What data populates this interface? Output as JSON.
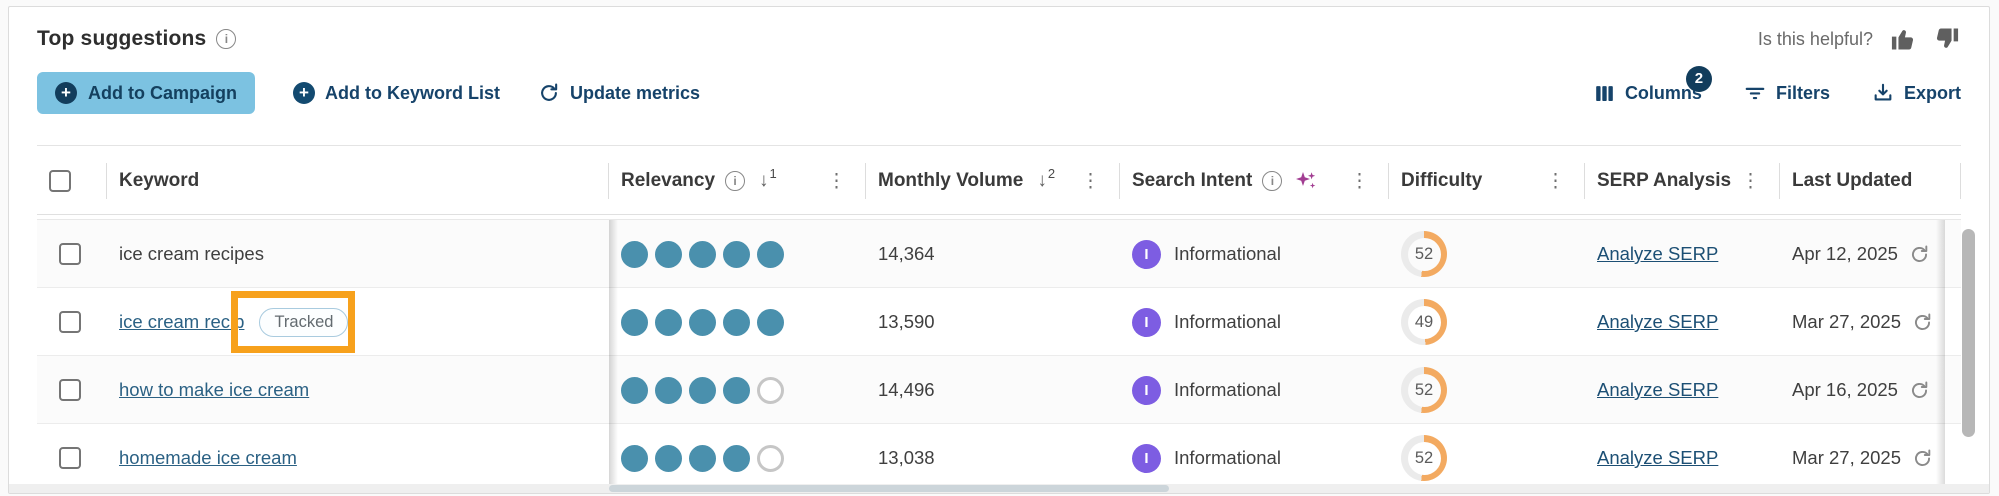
{
  "header": {
    "title": "Top suggestions",
    "helpful_label": "Is this helpful?"
  },
  "toolbar": {
    "add_to_campaign": "Add to Campaign",
    "add_to_keyword_list": "Add to Keyword List",
    "update_metrics": "Update metrics",
    "columns_label": "Columns",
    "columns_badge": "2",
    "filters_label": "Filters",
    "export_label": "Export"
  },
  "table": {
    "headers": {
      "keyword": "Keyword",
      "relevancy": "Relevancy",
      "relevancy_sort_order": "1",
      "monthly_volume": "Monthly Volume",
      "monthly_volume_sort_order": "2",
      "search_intent": "Search Intent",
      "difficulty": "Difficulty",
      "serp_analysis": "SERP Analysis",
      "last_updated": "Last Updated"
    },
    "rows": [
      {
        "keyword": "ice cream recipes",
        "keyword_is_link": false,
        "tracked_badge": null,
        "annotated": false,
        "relevancy_filled": 5,
        "relevancy_total": 5,
        "monthly_volume": "14,364",
        "intent_letter": "I",
        "intent_label": "Informational",
        "difficulty": 52,
        "serp_link": "Analyze SERP",
        "last_updated": "Apr 12, 2025"
      },
      {
        "keyword": "ice cream recip",
        "keyword_is_link": true,
        "tracked_badge": "Tracked",
        "annotated": true,
        "relevancy_filled": 5,
        "relevancy_total": 5,
        "monthly_volume": "13,590",
        "intent_letter": "I",
        "intent_label": "Informational",
        "difficulty": 49,
        "serp_link": "Analyze SERP",
        "last_updated": "Mar 27, 2025"
      },
      {
        "keyword": "how to make ice cream",
        "keyword_is_link": true,
        "tracked_badge": null,
        "annotated": false,
        "relevancy_filled": 4,
        "relevancy_total": 5,
        "monthly_volume": "14,496",
        "intent_letter": "I",
        "intent_label": "Informational",
        "difficulty": 52,
        "serp_link": "Analyze SERP",
        "last_updated": "Apr 16, 2025"
      },
      {
        "keyword": "homemade ice cream",
        "keyword_is_link": true,
        "tracked_badge": null,
        "annotated": false,
        "relevancy_filled": 4,
        "relevancy_total": 5,
        "monthly_volume": "13,038",
        "intent_letter": "I",
        "intent_label": "Informational",
        "difficulty": 52,
        "serp_link": "Analyze SERP",
        "last_updated": "Mar 27, 2025"
      }
    ]
  },
  "icons": {
    "info": "i",
    "sort_down": "↓",
    "kebab": "⋮",
    "plus": "+"
  },
  "colors": {
    "add_to_campaign_bg": "#7cc2e1",
    "navy": "#16436a",
    "relevancy_dot": "#4a90ad",
    "intent_purple": "#7d5de2",
    "difficulty_arc": "#f3aa61",
    "annotation_orange": "#f7a11c",
    "keyword_link": "#2b6184",
    "ai_sparkle": "#a23d92"
  }
}
